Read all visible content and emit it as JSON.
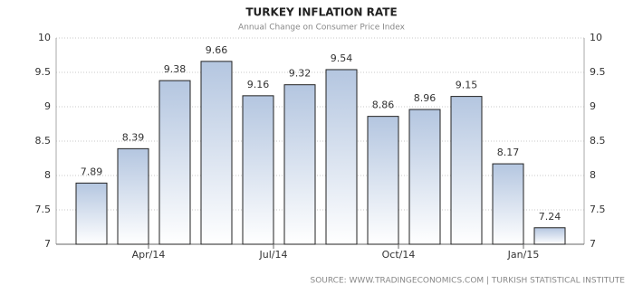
{
  "chart_data": {
    "type": "bar",
    "title": "TURKEY INFLATION RATE",
    "subtitle": "Annual Change on Consumer Price Index",
    "source": "SOURCE:  WWW.TRADINGECONOMICS.COM  |  TURKISH STATISTICAL INSTITUTE",
    "categories": [
      null,
      null,
      "Apr/14",
      null,
      null,
      "Jul/14",
      null,
      null,
      "Oct/14",
      null,
      null,
      "Jan/15"
    ],
    "values": [
      7.89,
      8.39,
      9.38,
      9.66,
      9.16,
      9.32,
      9.54,
      8.86,
      8.96,
      9.15,
      8.17,
      7.24
    ],
    "ylim": [
      7,
      10
    ],
    "yticks": [
      7,
      7.5,
      8,
      8.5,
      9,
      9.5,
      10
    ],
    "grid": true,
    "color": "#b4c6e0"
  }
}
